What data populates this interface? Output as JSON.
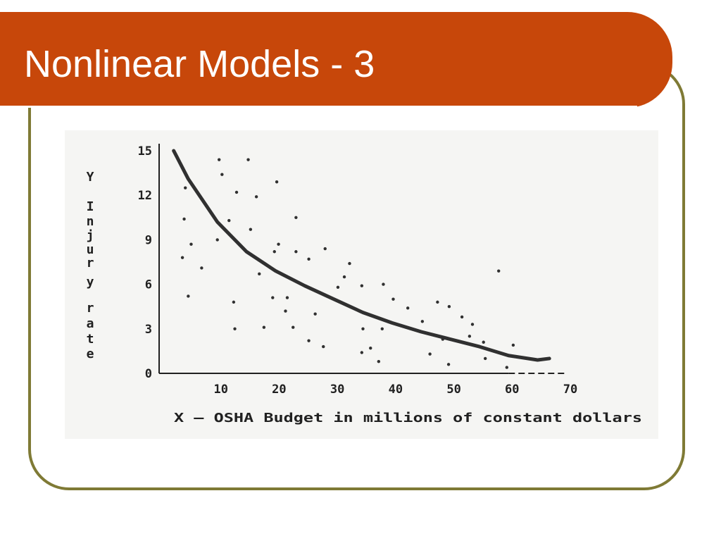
{
  "slide": {
    "title": "Nonlinear Models - 3",
    "colors": {
      "title_bar": "#c7470a",
      "frame": "#7f7a35",
      "text": "#ffffff"
    }
  },
  "chart_data": {
    "type": "scatter",
    "title": "",
    "xlabel": "X – OSHA Budget in millions of constant dollars",
    "ylabel_letters": [
      "Y",
      "I",
      "n",
      "j",
      "u",
      "r",
      "y",
      "r",
      "a",
      "t",
      "e"
    ],
    "xlim": [
      0,
      70
    ],
    "ylim": [
      0,
      15
    ],
    "x_ticks": [
      10,
      20,
      30,
      40,
      50,
      60,
      70
    ],
    "y_ticks": [
      0,
      3,
      6,
      9,
      12,
      15
    ],
    "grid": false,
    "scatter": {
      "x": [
        4.5,
        4.3,
        4.0,
        5.5,
        7.3,
        5.0,
        10.3,
        15.3,
        13.3,
        16.7,
        10.8,
        12.0,
        10.0,
        15.7,
        20.2,
        23.5,
        19.8,
        20.5,
        17.2,
        19.5,
        12.8,
        13.0,
        18.0,
        22.0,
        21.7,
        23.0,
        25.7,
        23.5,
        25.7,
        26.8,
        28.2,
        28.5,
        32.7,
        31.8,
        30.7,
        34.8,
        35.0,
        34.8,
        38.5,
        37.7,
        42.7,
        36.3,
        40.2,
        38.3,
        45.2,
        46.5,
        47.8,
        49.7,
        48.7,
        52.0,
        49.8,
        53.8,
        53.3,
        56.0,
        55.7,
        59.7,
        60.8,
        58.3
      ],
      "y": [
        12.5,
        10.4,
        7.8,
        8.7,
        7.1,
        5.2,
        14.4,
        14.4,
        12.2,
        11.9,
        13.4,
        10.3,
        9.0,
        9.7,
        12.9,
        10.5,
        8.2,
        8.7,
        6.7,
        5.1,
        4.8,
        3.0,
        3.1,
        5.1,
        4.2,
        3.1,
        7.7,
        8.2,
        2.2,
        4.0,
        1.8,
        8.4,
        7.4,
        6.5,
        5.8,
        1.4,
        3.0,
        5.9,
        6.0,
        0.8,
        4.4,
        1.7,
        5.0,
        3.0,
        3.5,
        1.3,
        4.8,
        0.6,
        2.3,
        3.8,
        4.5,
        3.3,
        2.5,
        1.0,
        2.1,
        0.4,
        1.9,
        6.9
      ]
    },
    "curve": {
      "x": [
        2.5,
        5.0,
        10.0,
        15.0,
        20.0,
        25.0,
        30.0,
        35.0,
        40.0,
        45.0,
        50.0,
        55.0,
        60.0,
        65.0,
        67.0
      ],
      "y": [
        15.0,
        13.1,
        10.2,
        8.2,
        6.9,
        5.9,
        5.0,
        4.1,
        3.4,
        2.8,
        2.3,
        1.8,
        1.2,
        0.9,
        1.0
      ]
    },
    "dashed_baseline": {
      "x": [
        60.0,
        70.0
      ],
      "y": [
        0,
        0
      ]
    }
  }
}
